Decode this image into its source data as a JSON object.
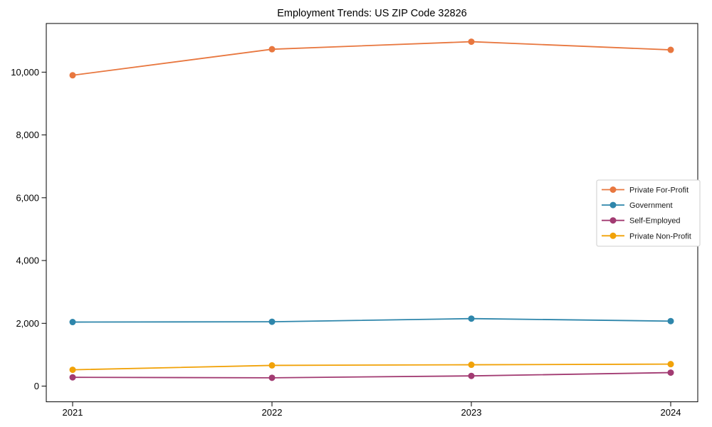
{
  "title": "Employment Trends: US ZIP Code 32826",
  "chart_data": {
    "type": "line",
    "title": "Employment Trends: US ZIP Code 32826",
    "categories": [
      "2021",
      "2022",
      "2023",
      "2024"
    ],
    "series": [
      {
        "name": "Private For-Profit",
        "color": "#e8773f",
        "values": [
          9900,
          10730,
          10970,
          10710
        ]
      },
      {
        "name": "Government",
        "color": "#2e86ab",
        "values": [
          2040,
          2050,
          2150,
          2070
        ]
      },
      {
        "name": "Self-Employed",
        "color": "#a23b72",
        "values": [
          280,
          265,
          325,
          430
        ]
      },
      {
        "name": "Private Non-Profit",
        "color": "#f1a208",
        "values": [
          520,
          660,
          680,
          700
        ]
      }
    ],
    "xlabel": "",
    "ylabel": "",
    "ylim": [
      -500,
      11550
    ],
    "yticks": [
      0,
      2000,
      4000,
      6000,
      8000,
      10000
    ],
    "ytick_labels": [
      "0",
      "2,000",
      "4,000",
      "6,000",
      "8,000",
      "10,000"
    ],
    "grid": false,
    "marker": "circle",
    "legend_position": "center-right",
    "background": "#ffffff",
    "spine_color": "#000000"
  }
}
